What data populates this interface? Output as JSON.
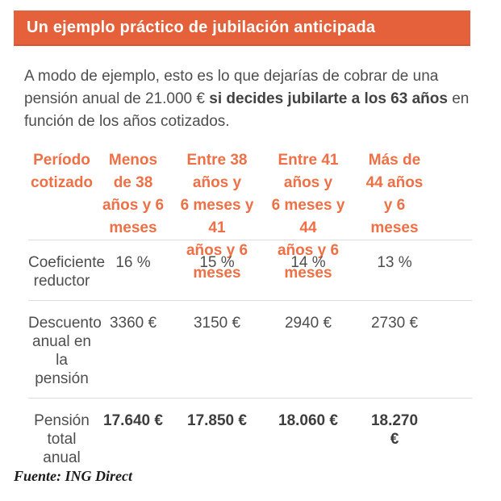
{
  "colors": {
    "bar_background": "#E5613C",
    "bar_bottom_edge": "#D4552F",
    "table_header_text": "#ED7046",
    "body_text": "#4E4E4E",
    "bold_value_text": "#3E3E3E",
    "divider": "#DDDDDD",
    "source_text": "#1B1B1B"
  },
  "header": {
    "title": "Un ejemplo práctico de jubilación anticipada"
  },
  "intro": {
    "line1": "A modo de ejemplo, esto es lo que dejarías de cobrar de una",
    "line2_regular": "pensión anual de 21.000 € ",
    "line2_bold": "si decides jubilarte a los 63 años",
    "line2_after": " en",
    "line3": "función de los años cotizados."
  },
  "table": {
    "columns": [
      {
        "label": "Período\ncotizado"
      },
      {
        "label": "Menos\nde 38\naños y 6\nmeses"
      },
      {
        "label": "Entre 38 años y\n6 meses y 41\naños y 6 meses"
      },
      {
        "label": "Entre 41 años y\n6 meses y 44\naños y 6 meses"
      },
      {
        "label": "Más de\n44 años\ny 6\nmeses"
      }
    ],
    "rows": [
      {
        "label": "Coeficiente\nreductor",
        "values": [
          "16 %",
          "15 %",
          "14 %",
          "13 %"
        ]
      },
      {
        "label": "Descuento\nanual en la\npensión",
        "values": [
          "3360 €",
          "3150 €",
          "2940 €",
          "2730 €"
        ]
      },
      {
        "label": "Pensión\ntotal anual",
        "values": [
          "17.640 €",
          "17.850 €",
          "18.060 €",
          "18.270\n€"
        ]
      }
    ]
  },
  "footer": {
    "source": "Fuente: ING Direct"
  }
}
